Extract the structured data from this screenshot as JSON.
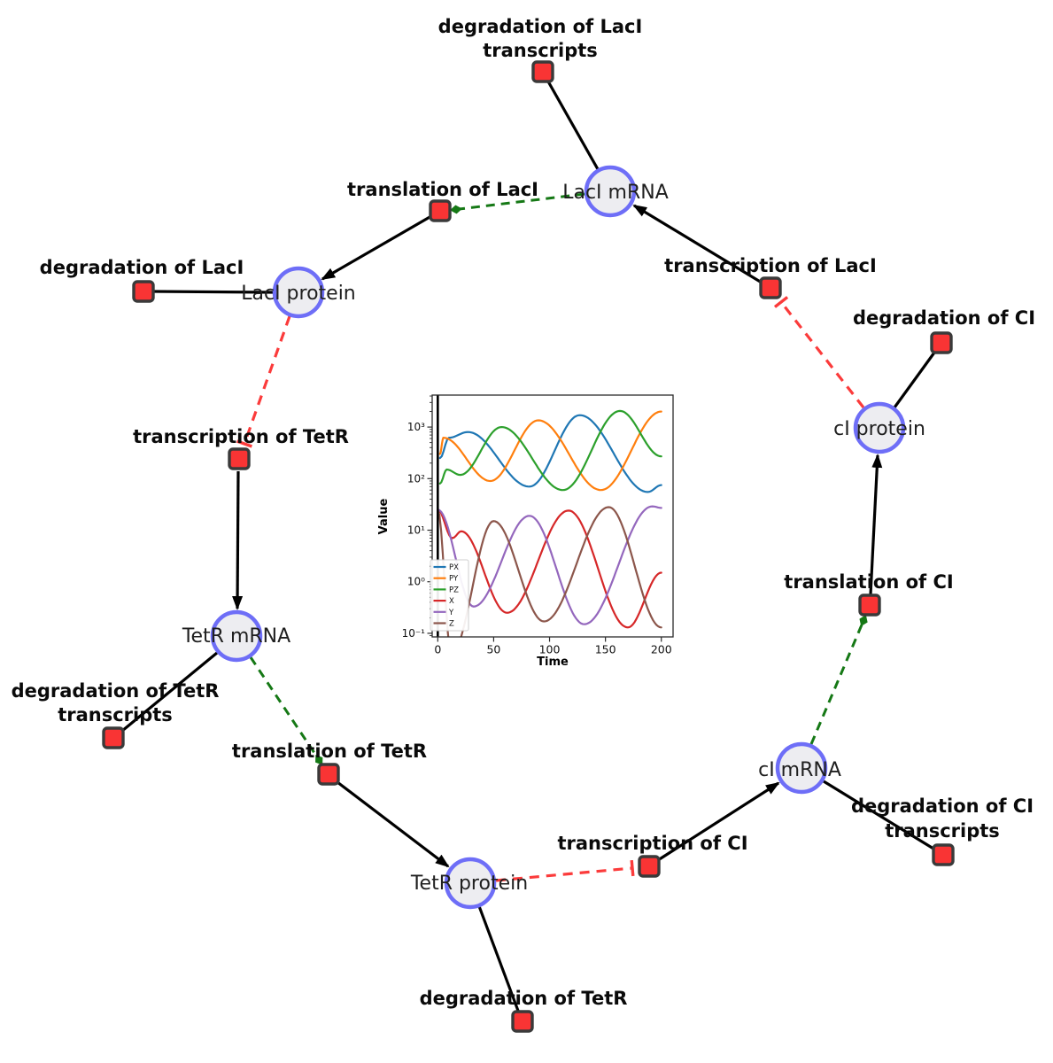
{
  "canvas": {
    "background": "#ffffff"
  },
  "network": {
    "species": [
      {
        "id": "laci-mrna",
        "label": "LacI mRNA"
      },
      {
        "id": "laci-protein",
        "label": "LacI protein"
      },
      {
        "id": "tetr-mrna",
        "label": "TetR mRNA"
      },
      {
        "id": "tetr-protein",
        "label": "TetR protein"
      },
      {
        "id": "ci-mrna",
        "label": "cI mRNA"
      },
      {
        "id": "ci-protein",
        "label": "cI protein"
      }
    ],
    "reactions": [
      {
        "id": "degradation-laci-transcripts",
        "line1": "degradation of LacI",
        "line2": "transcripts"
      },
      {
        "id": "translation-laci",
        "line1": "translation of LacI"
      },
      {
        "id": "degradation-laci",
        "line1": "degradation of LacI"
      },
      {
        "id": "transcription-laci",
        "line1": "transcription of LacI"
      },
      {
        "id": "degradation-ci",
        "line1": "degradation of CI"
      },
      {
        "id": "transcription-tetr",
        "line1": "transcription of TetR"
      },
      {
        "id": "translation-ci",
        "line1": "translation of CI"
      },
      {
        "id": "degradation-tetr-transcripts",
        "line1": "degradation of TetR",
        "line2": "transcripts"
      },
      {
        "id": "translation-tetr",
        "line1": "translation of TetR"
      },
      {
        "id": "degradation-ci-transcripts",
        "line1": "degradation of CI",
        "line2": "transcripts"
      },
      {
        "id": "transcription-ci",
        "line1": "transcription of CI"
      },
      {
        "id": "degradation-tetr",
        "line1": "degradation of TetR"
      }
    ],
    "edges": [
      {
        "from": "laci-mrna",
        "to": "degradation-laci-transcripts",
        "type": "consumption"
      },
      {
        "from": "laci-mrna",
        "to": "translation-laci",
        "type": "modifier"
      },
      {
        "from": "translation-laci",
        "to": "laci-protein",
        "type": "production"
      },
      {
        "from": "laci-protein",
        "to": "degradation-laci",
        "type": "consumption"
      },
      {
        "from": "laci-protein",
        "to": "transcription-tetr",
        "type": "inhibition"
      },
      {
        "from": "transcription-tetr",
        "to": "tetr-mrna",
        "type": "production"
      },
      {
        "from": "tetr-mrna",
        "to": "degradation-tetr-transcripts",
        "type": "consumption"
      },
      {
        "from": "tetr-mrna",
        "to": "translation-tetr",
        "type": "modifier"
      },
      {
        "from": "translation-tetr",
        "to": "tetr-protein",
        "type": "production"
      },
      {
        "from": "tetr-protein",
        "to": "degradation-tetr",
        "type": "consumption"
      },
      {
        "from": "tetr-protein",
        "to": "transcription-ci",
        "type": "inhibition"
      },
      {
        "from": "transcription-ci",
        "to": "ci-mrna",
        "type": "production"
      },
      {
        "from": "ci-mrna",
        "to": "degradation-ci-transcripts",
        "type": "consumption"
      },
      {
        "from": "ci-mrna",
        "to": "translation-ci",
        "type": "modifier"
      },
      {
        "from": "translation-ci",
        "to": "ci-protein",
        "type": "production"
      },
      {
        "from": "ci-protein",
        "to": "degradation-ci",
        "type": "consumption"
      },
      {
        "from": "ci-protein",
        "to": "transcription-laci",
        "type": "inhibition"
      }
    ],
    "colors": {
      "species_fill": "#ededf1",
      "species_border": "#6e6ef7",
      "reaction_fill": "#f93434",
      "reaction_border": "#3a3a3a",
      "reaction_edge": "#000000",
      "modifier_edge": "#157815",
      "inhibition_edge": "#fb3b3b"
    }
  },
  "chart_data": {
    "type": "line",
    "title": "",
    "xlabel": "Time",
    "ylabel": "Value",
    "yscale": "log",
    "xlim": [
      -5,
      210
    ],
    "ylim_log10": [
      -1.07,
      3.62
    ],
    "x_ticks": [
      0,
      50,
      100,
      150,
      200
    ],
    "y_ticks": [
      {
        "label": "10⁻¹",
        "exp": -1
      },
      {
        "label": "10⁰",
        "exp": 0
      },
      {
        "label": "10¹",
        "exp": 1
      },
      {
        "label": "10²",
        "exp": 2
      },
      {
        "label": "10³",
        "exp": 3
      }
    ],
    "legend_position": "lower left",
    "grid": false,
    "initial_spike_line_x": 0,
    "series": [
      {
        "name": "PX",
        "color": "#1f77b4",
        "control_points": [
          [
            2,
            250
          ],
          [
            10,
            620
          ],
          [
            27,
            800
          ],
          [
            82,
            70
          ],
          [
            127,
            1700
          ],
          [
            188,
            55
          ],
          [
            200,
            75
          ]
        ]
      },
      {
        "name": "PY",
        "color": "#ff7f0e",
        "control_points": [
          [
            2,
            300
          ],
          [
            5,
            620
          ],
          [
            47,
            90
          ],
          [
            90,
            1350
          ],
          [
            146,
            60
          ],
          [
            200,
            2000
          ]
        ]
      },
      {
        "name": "PZ",
        "color": "#2ca02c",
        "control_points": [
          [
            2,
            80
          ],
          [
            8,
            150
          ],
          [
            20,
            118
          ],
          [
            57,
            1000
          ],
          [
            112,
            60
          ],
          [
            163,
            2050
          ],
          [
            200,
            270
          ]
        ]
      },
      {
        "name": "X",
        "color": "#d62728",
        "control_points": [
          [
            0,
            25
          ],
          [
            13,
            7
          ],
          [
            21,
            9.5
          ],
          [
            62,
            0.25
          ],
          [
            117,
            24
          ],
          [
            170,
            0.13
          ],
          [
            200,
            1.5
          ]
        ]
      },
      {
        "name": "Y",
        "color": "#9467bd",
        "control_points": [
          [
            0,
            25
          ],
          [
            32,
            0.33
          ],
          [
            82,
            19
          ],
          [
            131,
            0.15
          ],
          [
            192,
            29
          ],
          [
            200,
            27
          ]
        ]
      },
      {
        "name": "Z",
        "color": "#8c564b",
        "control_points": [
          [
            0,
            25
          ],
          [
            12,
            0.04
          ],
          [
            50,
            15
          ],
          [
            95,
            0.17
          ],
          [
            153,
            28
          ],
          [
            200,
            0.13
          ]
        ]
      }
    ]
  }
}
